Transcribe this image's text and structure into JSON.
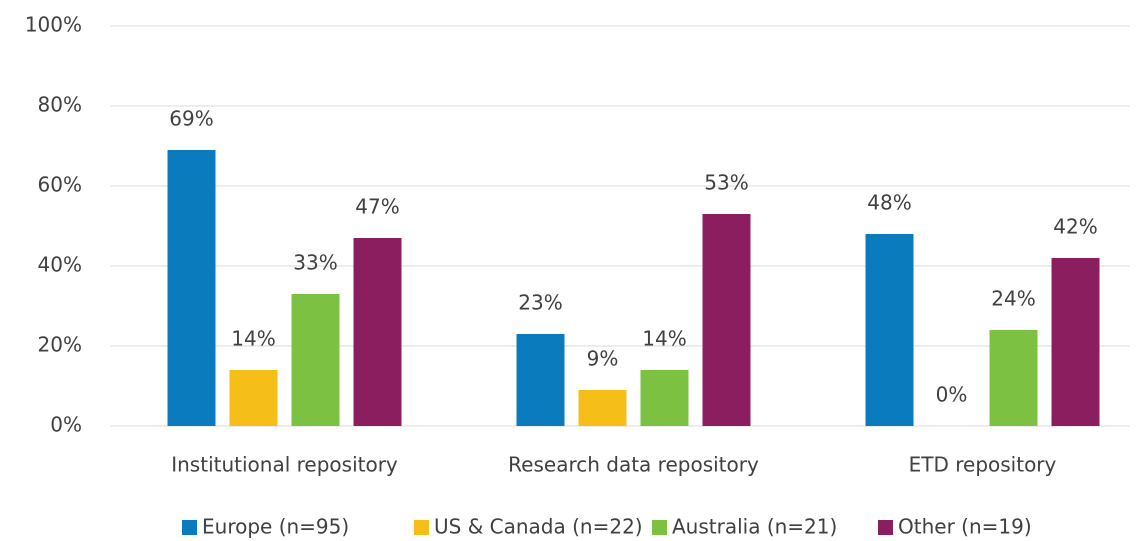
{
  "chart_data": {
    "type": "bar",
    "categories": [
      "Institutional repository",
      "Research data repository",
      "ETD repository"
    ],
    "series": [
      {
        "name": "Europe (n=95)",
        "color": "#0a7bbd",
        "values": [
          69,
          23,
          48
        ],
        "value_labels": [
          "69%",
          "23%",
          "48%"
        ]
      },
      {
        "name": "US & Canada (n=22)",
        "color": "#f5be18",
        "values": [
          14,
          9,
          0
        ],
        "value_labels": [
          "14%",
          "9%",
          "0%"
        ]
      },
      {
        "name": "Australia (n=21)",
        "color": "#7dc143",
        "values": [
          33,
          14,
          24
        ],
        "value_labels": [
          "33%",
          "14%",
          "24%"
        ]
      },
      {
        "name": "Other (n=19)",
        "color": "#8b1e5f",
        "values": [
          47,
          53,
          42
        ],
        "value_labels": [
          "47%",
          "53%",
          "42%"
        ]
      }
    ],
    "ylim": [
      0,
      100
    ],
    "yticks": [
      {
        "value": 0,
        "label": "0%"
      },
      {
        "value": 20,
        "label": "20%"
      },
      {
        "value": 40,
        "label": "40%"
      },
      {
        "value": 60,
        "label": "60%"
      },
      {
        "value": 80,
        "label": "80%"
      },
      {
        "value": 100,
        "label": "100%"
      }
    ],
    "grid": true,
    "legend": "bottom"
  }
}
